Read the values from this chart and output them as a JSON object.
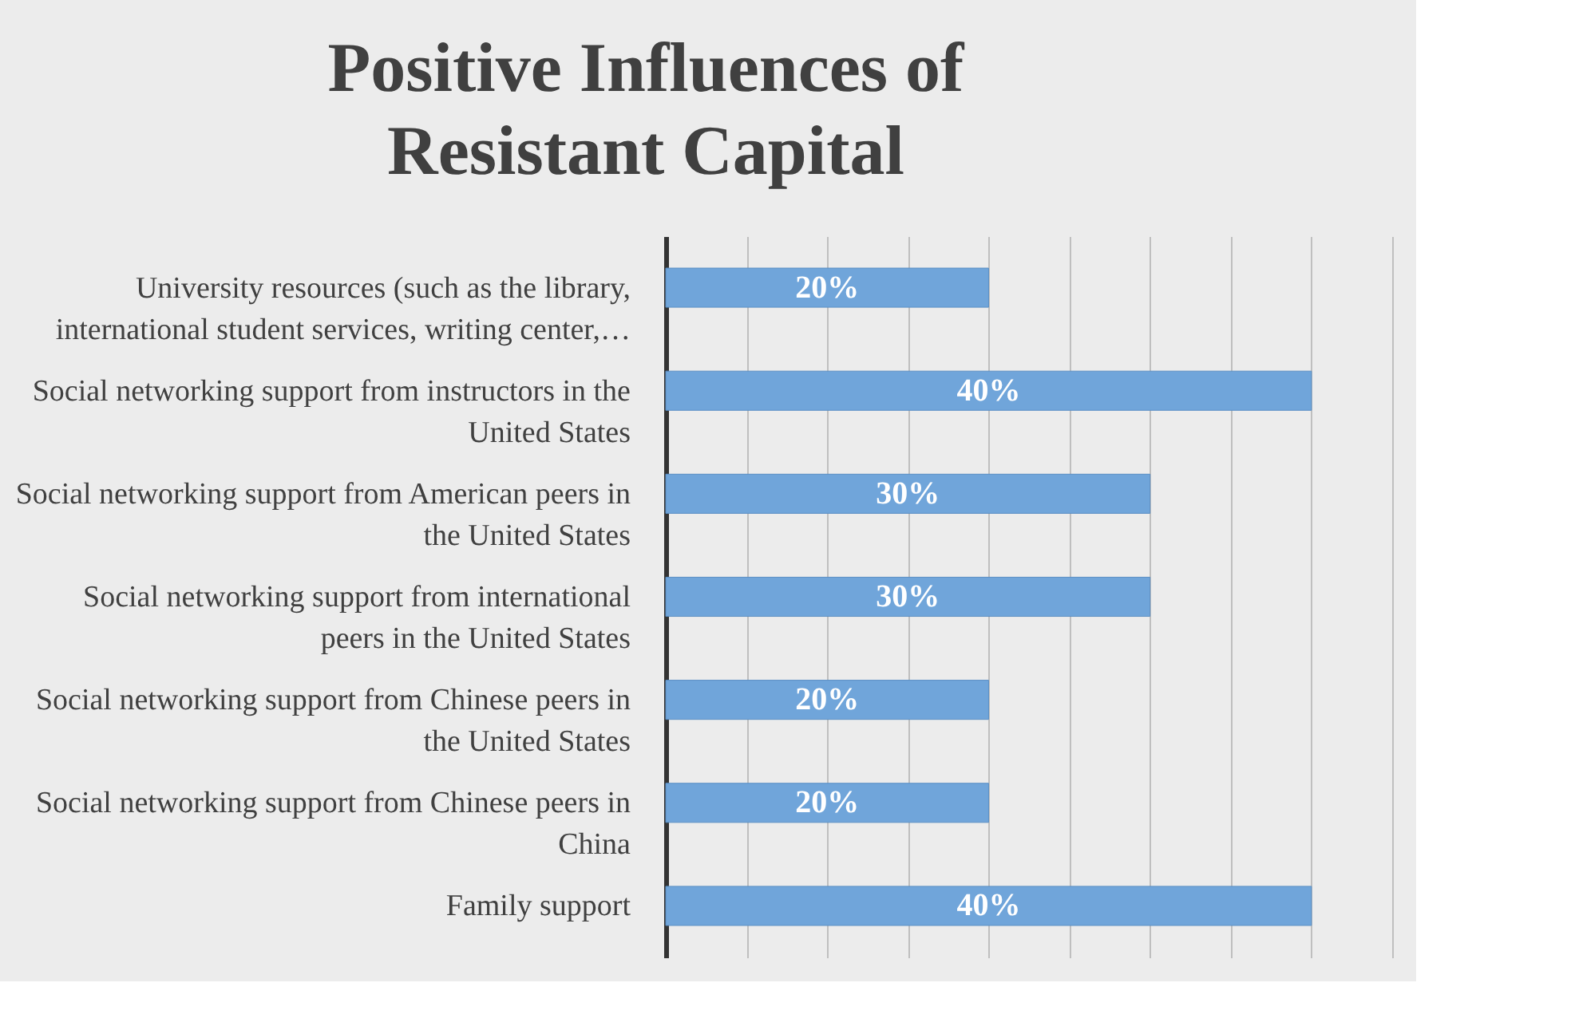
{
  "chart_data": {
    "type": "bar",
    "orientation": "horizontal",
    "title": "Positive Influences of Resistant Capital",
    "categories": [
      "University resources (such as the library, international student services, writing center,…",
      "Social networking support from instructors in the United States",
      "Social networking support from American peers in the United States",
      "Social networking support from international peers in the United States",
      "Social networking support from Chinese peers in the United States",
      "Social networking support from Chinese peers in China",
      "Family support"
    ],
    "values": [
      20,
      40,
      30,
      30,
      20,
      20,
      40
    ],
    "value_labels": [
      "20%",
      "40%",
      "30%",
      "30%",
      "20%",
      "20%",
      "40%"
    ],
    "color": "#70a5da",
    "xlim": [
      0,
      45
    ],
    "xticks": [
      {
        "value": 0,
        "label": null
      },
      {
        "value": 5,
        "label": null
      },
      {
        "value": 10,
        "label": null
      },
      {
        "value": 15,
        "label": null
      },
      {
        "value": 20,
        "label": null
      },
      {
        "value": 25,
        "label": null
      },
      {
        "value": 30,
        "label": null
      },
      {
        "value": 35,
        "label": null
      },
      {
        "value": 40,
        "label": null
      },
      {
        "value": 45,
        "label": null
      }
    ],
    "grid": "x",
    "tick_labels": "y"
  }
}
